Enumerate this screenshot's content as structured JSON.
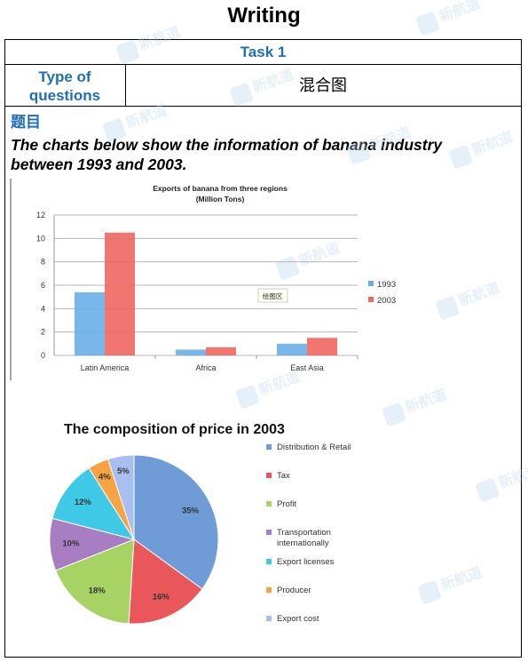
{
  "page": {
    "title": "Writing",
    "task": "Task 1",
    "type_label": "Type of questions",
    "type_value": "混合图",
    "section_label": "题目",
    "prompt": "The charts below show the information of banana industry between 1993 and 2003.",
    "watermark": "新航道 NEW CHANNEL"
  },
  "colors": {
    "blue": "#5b9bd5",
    "red": "#e8625f",
    "heading_blue": "#1f6fb5"
  },
  "chart_data": [
    {
      "type": "bar",
      "title": "Exports of banana from three regions",
      "subtitle": "(Million Tons)",
      "categories": [
        "Latin America",
        "Africa",
        "East Asia"
      ],
      "series": [
        {
          "name": "1993",
          "values": [
            5.4,
            0.5,
            1.0
          ],
          "color": "#6aaee8"
        },
        {
          "name": "2003",
          "values": [
            10.5,
            0.7,
            1.5
          ],
          "color": "#f06763"
        }
      ],
      "ylim": [
        0,
        12
      ],
      "yticks": [
        0,
        2,
        4,
        6,
        8,
        10,
        12
      ],
      "grid": true,
      "legend": "right",
      "annotation": "绘图区"
    },
    {
      "type": "pie",
      "title": "The composition of price in 2003",
      "slices": [
        {
          "label": "Distribution & Retail",
          "value": 35,
          "text": "35%",
          "color": "#6f9bd6"
        },
        {
          "label": "Tax",
          "value": 16,
          "text": "16%",
          "color": "#e9575a"
        },
        {
          "label": "Profit",
          "value": 18,
          "text": "18%",
          "color": "#a6d364"
        },
        {
          "label": "Transportation internationally",
          "value": 10,
          "text": "10%",
          "color": "#a77ec4"
        },
        {
          "label": "Export licenses",
          "value": 12,
          "text": "12%",
          "color": "#3ec9e6"
        },
        {
          "label": "Producer",
          "value": 4,
          "text": "4%",
          "color": "#f7a344"
        },
        {
          "label": "Export cost",
          "value": 5,
          "text": "5%",
          "color": "#a9c0ee"
        }
      ],
      "legend": "right"
    }
  ]
}
